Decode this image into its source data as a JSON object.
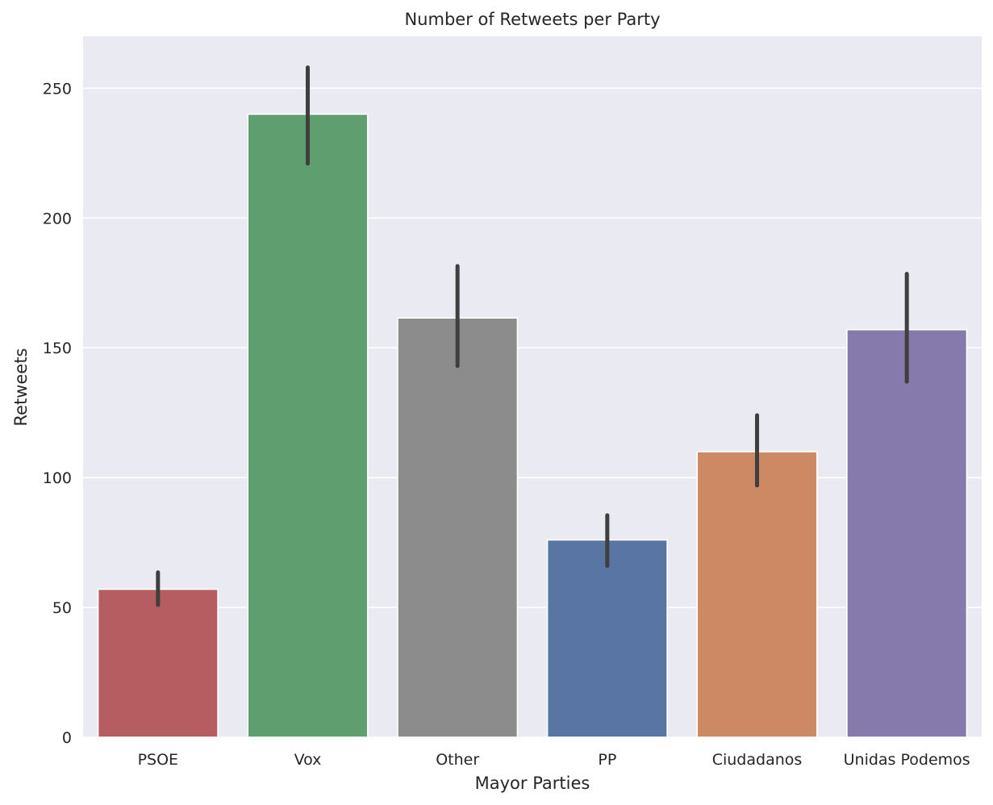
{
  "chart_data": {
    "type": "bar",
    "title": "Number of Retweets per Party",
    "xlabel": "Mayor Parties",
    "ylabel": "Retweets",
    "categories": [
      "PSOE",
      "Vox",
      "Other",
      "PP",
      "Ciudadanos",
      "Unidas Podemos"
    ],
    "values": [
      57,
      240,
      161.5,
      76,
      110,
      157
    ],
    "error_low": [
      51,
      221,
      143,
      66,
      97,
      137
    ],
    "error_high": [
      63.5,
      258,
      181.5,
      85.5,
      124,
      178.5
    ],
    "colors": [
      "#b55d60",
      "#5f9e6e",
      "#8c8c8c",
      "#5975a4",
      "#cc8963",
      "#857aab"
    ],
    "ylim": [
      0,
      270
    ],
    "yticks": [
      0,
      50,
      100,
      150,
      200,
      250
    ],
    "grid": true,
    "legend": "none",
    "style": {
      "plot_background": "#eaeaf2",
      "grid_color": "#ffffff",
      "errorbar_color": "#3f3f3f"
    }
  }
}
